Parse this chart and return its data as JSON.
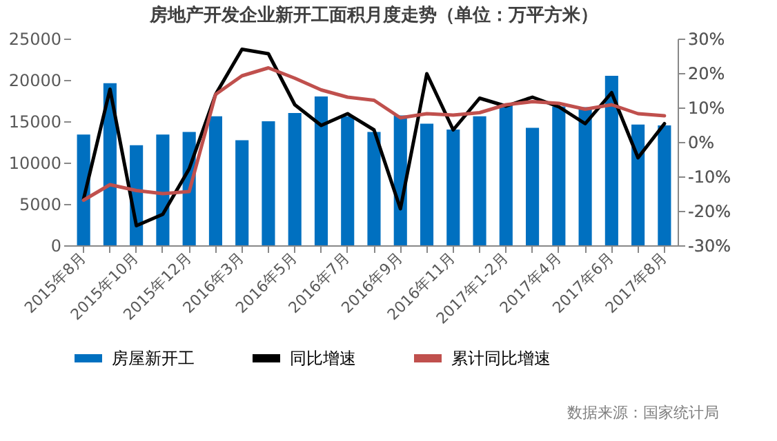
{
  "chart_data": {
    "type": "bar",
    "title": "房地产开发企业新开工面积月度走势（单位：万平方米）",
    "categories": [
      "2015年8月",
      null,
      "2015年10月",
      null,
      "2015年12月",
      null,
      "2016年3月",
      null,
      "2016年5月",
      null,
      "2016年7月",
      null,
      "2016年9月",
      null,
      "2016年11月",
      null,
      "2017年1-2月",
      null,
      "2017年4月",
      null,
      "2017年6月",
      null,
      "2017年8月"
    ],
    "series": [
      {
        "name": "房屋新开工",
        "color": "#0070c0",
        "values": [
          13400,
          19600,
          12100,
          13400,
          13700,
          15600,
          12700,
          15000,
          16000,
          18000,
          15600,
          13700,
          15700,
          14700,
          14000,
          15600,
          17100,
          14200,
          16800,
          16700,
          20500,
          14600,
          14500
        ]
      },
      {
        "name": "同比增速",
        "type": "line",
        "axis": "y2",
        "color": "#000000",
        "values": [
          -16.6,
          15.3,
          -24.3,
          -21.0,
          -7.8,
          13.8,
          26.9,
          25.6,
          10.8,
          4.8,
          8.2,
          3.5,
          -19.4,
          19.8,
          3.5,
          12.7,
          10.4,
          13.0,
          10.2,
          5.3,
          14.3,
          -4.6,
          5.3
        ]
      },
      {
        "name": "累计同比增速",
        "type": "line",
        "axis": "y2",
        "color": "#c0504d",
        "values": [
          -16.9,
          -12.4,
          -14.1,
          -15.0,
          -14.4,
          13.8,
          19.2,
          21.5,
          18.5,
          15.1,
          13.0,
          12.1,
          7.0,
          8.2,
          7.8,
          8.5,
          10.8,
          11.7,
          11.2,
          9.5,
          10.8,
          8.2,
          7.6
        ]
      }
    ],
    "ylim": [
      0,
      25000
    ],
    "yticks": [
      0,
      5000,
      10000,
      15000,
      20000,
      25000
    ],
    "y2lim": [
      -30,
      30
    ],
    "y2ticks": [
      {
        "value": -30,
        "label": "-30%"
      },
      {
        "value": -20,
        "label": "-20%"
      },
      {
        "value": -10,
        "label": "-10%"
      },
      {
        "value": 0,
        "label": "0%"
      },
      {
        "value": 10,
        "label": "10%"
      },
      {
        "value": 20,
        "label": "20%"
      },
      {
        "value": 30,
        "label": "30%"
      }
    ],
    "legend": "bottom",
    "line_style": "solid",
    "annotations": [
      "数据来源：国家统计局"
    ]
  }
}
